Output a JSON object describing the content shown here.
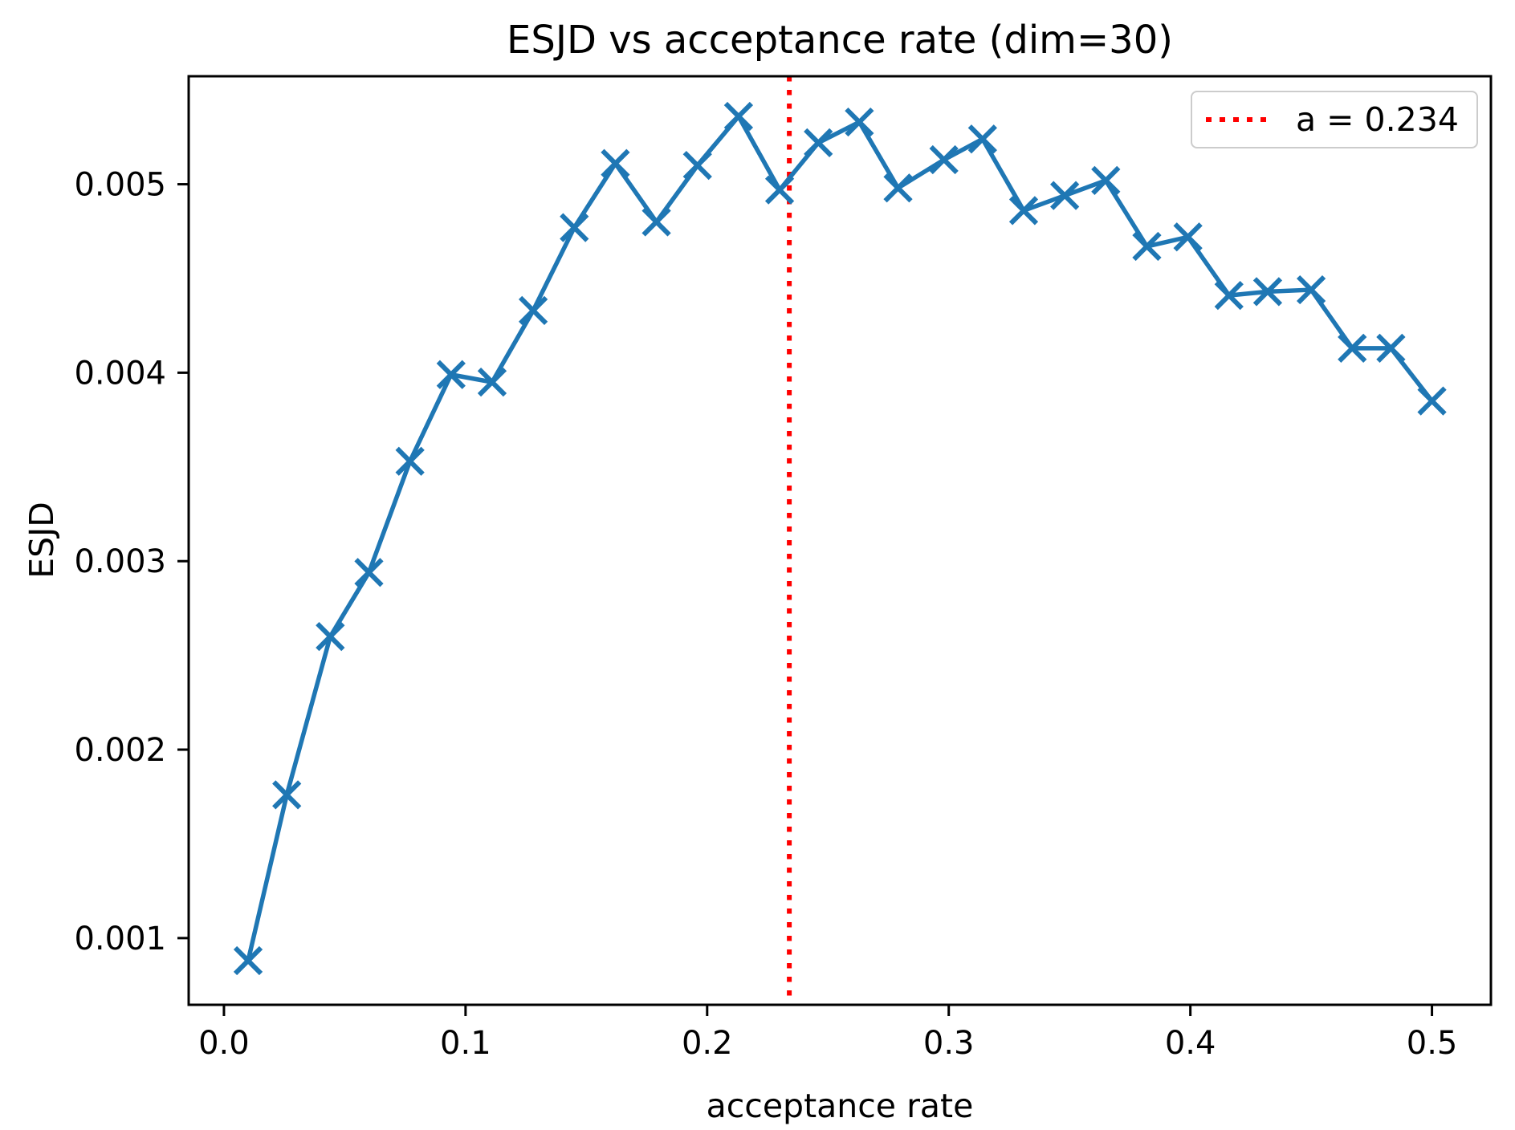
{
  "chart_data": {
    "type": "line",
    "title": "ESJD vs acceptance rate (dim=30)",
    "xlabel": "acceptance rate",
    "ylabel": "ESJD",
    "grid": false,
    "xlim": [
      -0.0146,
      0.5244
    ],
    "ylim": [
      0.000646,
      0.005573
    ],
    "x_ticks": [
      0.0,
      0.1,
      0.2,
      0.3,
      0.4,
      0.5
    ],
    "x_tick_labels": [
      "0.0",
      "0.1",
      "0.2",
      "0.3",
      "0.4",
      "0.5"
    ],
    "y_ticks": [
      0.001,
      0.002,
      0.003,
      0.004,
      0.005
    ],
    "y_tick_labels": [
      "0.001",
      "0.002",
      "0.003",
      "0.004",
      "0.005"
    ],
    "vline": {
      "x": 0.234,
      "color": "#ff0000",
      "linestyle": "dotted"
    },
    "legend": {
      "position": "upper right",
      "entries": [
        {
          "label": "a = 0.234",
          "color": "#ff0000",
          "linestyle": "dotted"
        }
      ]
    },
    "series": [
      {
        "name": "ESJD",
        "color": "#1f77b4",
        "marker": "x",
        "x": [
          0.01,
          0.026,
          0.044,
          0.06,
          0.077,
          0.094,
          0.111,
          0.128,
          0.145,
          0.162,
          0.179,
          0.196,
          0.213,
          0.23,
          0.246,
          0.263,
          0.279,
          0.298,
          0.314,
          0.331,
          0.348,
          0.365,
          0.382,
          0.399,
          0.416,
          0.432,
          0.45,
          0.467,
          0.483,
          0.5
        ],
        "y": [
          0.00088,
          0.00176,
          0.0026,
          0.00294,
          0.00353,
          0.00399,
          0.00395,
          0.00433,
          0.00477,
          0.00511,
          0.0048,
          0.0051,
          0.00536,
          0.00497,
          0.00522,
          0.00533,
          0.00498,
          0.00513,
          0.00524,
          0.00486,
          0.00494,
          0.00502,
          0.00467,
          0.00472,
          0.00441,
          0.00443,
          0.00444,
          0.00413,
          0.00413,
          0.00385
        ]
      }
    ]
  }
}
